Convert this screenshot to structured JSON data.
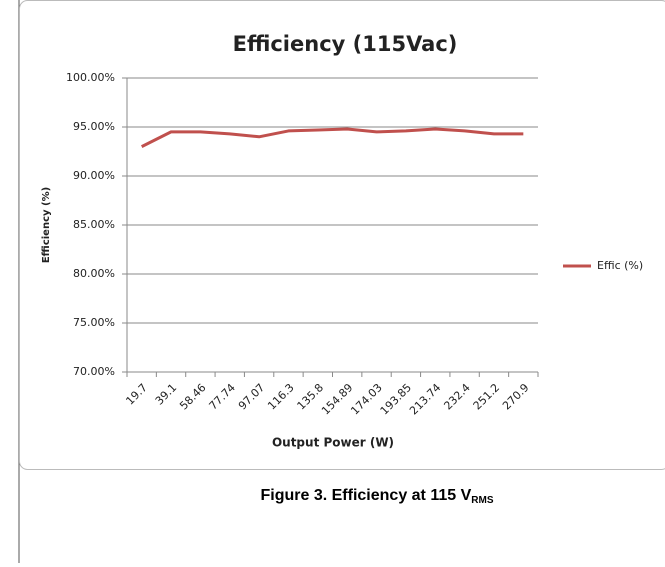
{
  "chart_data": {
    "type": "line",
    "title": "Efficiency (115Vac)",
    "x_label": "Output Power (W)",
    "y_label": "Efficiency  (%)",
    "categories": [
      "19.7",
      "39.1",
      "58.46",
      "77.74",
      "97.07",
      "116.3",
      "135.8",
      "154.89",
      "174.03",
      "193.85",
      "213.74",
      "232.4",
      "251.2",
      "270.9"
    ],
    "series": [
      {
        "name": "Effic (%)",
        "color": "#c0504d",
        "values": [
          93.0,
          94.5,
          94.5,
          94.3,
          94.0,
          94.6,
          94.7,
          94.8,
          94.5,
          94.6,
          94.8,
          94.6,
          94.3,
          94.3
        ]
      }
    ],
    "ylim": [
      70,
      100
    ],
    "yticks": [
      {
        "value": 70,
        "label": "70.00%"
      },
      {
        "value": 75,
        "label": "75.00%"
      },
      {
        "value": 80,
        "label": "80.00%"
      },
      {
        "value": 85,
        "label": "85.00%"
      },
      {
        "value": 90,
        "label": "90.00%"
      },
      {
        "value": 95,
        "label": "95.00%"
      },
      {
        "value": 100,
        "label": "100.00%"
      }
    ],
    "grid": true,
    "legend": "right"
  },
  "caption": {
    "text": "Figure 3. Efficiency at 115 V",
    "subscript": "RMS"
  }
}
